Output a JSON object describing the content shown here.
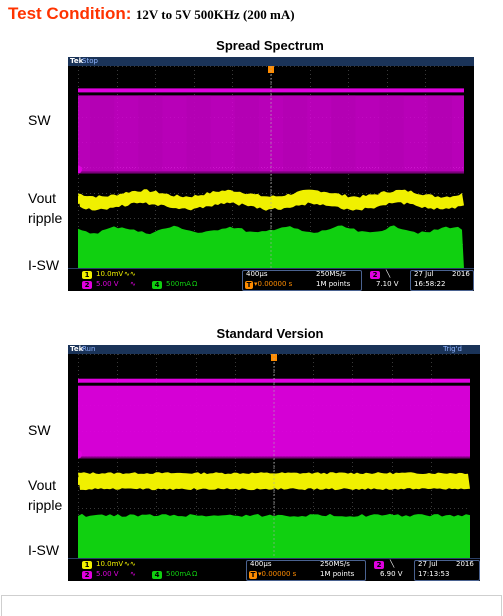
{
  "heading": {
    "label": "Test Condition:",
    "value": "12V to 5V 500KHz (200 mA)"
  },
  "colors": {
    "sw": "#e000e0",
    "vout": "#f0f000",
    "isw": "#10d010",
    "heading": "#ff3300",
    "scope_bar": "#1a3358"
  },
  "panels": [
    {
      "title": "Spread Spectrum",
      "labels": {
        "sw": "SW",
        "vout": "Vout",
        "ripple": "ripple",
        "isw": "I-SW"
      },
      "status": "Stop",
      "trig": "",
      "ch1": "10.0mV",
      "ch2": "5.00 V",
      "ch3": "500mA",
      "hscale": "400µs",
      "trig_pos": "▾0.00000 s",
      "rate": "250MS/s",
      "points": "1M points",
      "trig_level": "7.10 V",
      "date": "27 Jul",
      "year": "2016",
      "time": "16:58:22"
    },
    {
      "title": "Standard Version",
      "labels": {
        "sw": "SW",
        "vout": "Vout",
        "ripple": "ripple",
        "isw": "I-SW"
      },
      "status": "Run",
      "trig": "Trig'd",
      "ch1": "10.0mV",
      "ch2": "5.00 V",
      "ch3": "500mA",
      "hscale": "400µs",
      "trig_pos": "▾0.00000 s",
      "rate": "250MS/s",
      "points": "1M points",
      "trig_level": "6.90 V",
      "date": "27 Jul",
      "year": "2016",
      "time": "17:13:53"
    }
  ]
}
